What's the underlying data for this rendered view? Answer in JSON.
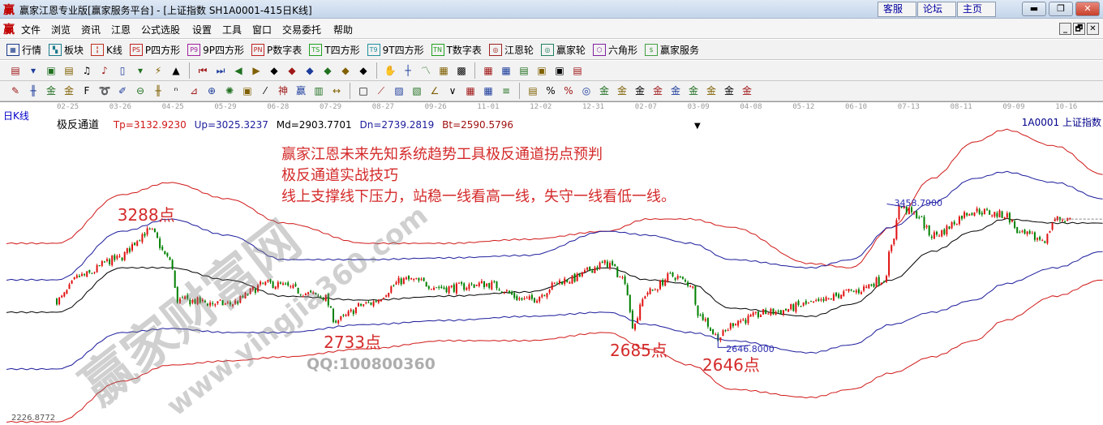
{
  "window": {
    "logo": "赢",
    "title": "赢家江恩专业版[赢家服务平台] - [上证指数  SH1A0001-415日K线]",
    "links": [
      "客服",
      "论坛",
      "主页"
    ],
    "controls": [
      "minimize-icon",
      "restore-icon",
      "close-icon"
    ]
  },
  "menu": {
    "logo": "赢",
    "items": [
      "文件",
      "浏览",
      "资讯",
      "江恩",
      "公式选股",
      "设置",
      "工具",
      "窗口",
      "交易委托",
      "帮助"
    ],
    "mdi_controls": [
      "_",
      "🗗",
      "✕"
    ]
  },
  "toolbar1": [
    {
      "label": "行情",
      "icon": "quote-table-icon",
      "glyph": "▦",
      "color": "#1a3c8c"
    },
    {
      "label": "板块",
      "icon": "sector-blocks-icon",
      "glyph": "▚",
      "color": "#1a7a8c"
    },
    {
      "label": "K线",
      "icon": "candlestick-icon",
      "glyph": "╏",
      "color": "#c03020"
    },
    {
      "label": "P四方形",
      "icon": "ps-icon",
      "glyph": "PS",
      "color": "#c02020"
    },
    {
      "label": "9P四方形",
      "icon": "p9-icon",
      "glyph": "P9",
      "color": "#a020a0"
    },
    {
      "label": "P数字表",
      "icon": "pn-icon",
      "glyph": "PN",
      "color": "#c02020"
    },
    {
      "label": "T四方形",
      "icon": "ts-icon",
      "glyph": "TS",
      "color": "#20a020"
    },
    {
      "label": "9T四方形",
      "icon": "t9-icon",
      "glyph": "T9",
      "color": "#2090a0"
    },
    {
      "label": "T数字表",
      "icon": "tn-icon",
      "glyph": "TN",
      "color": "#20a020"
    },
    {
      "label": "江恩轮",
      "icon": "gann-wheel-icon",
      "glyph": "◎",
      "color": "#a02020"
    },
    {
      "label": "赢家轮",
      "icon": "winner-wheel-icon",
      "glyph": "◎",
      "color": "#208060"
    },
    {
      "label": "六角形",
      "icon": "hexagon-icon",
      "glyph": "⬡",
      "color": "#8020a0"
    },
    {
      "label": "赢家服务",
      "icon": "dollar-icon",
      "glyph": "$",
      "color": "#40a040"
    }
  ],
  "toolbar2": [
    "day-period-icon",
    "period-dropdown-icon",
    "draw-icon",
    "notes-icon",
    "chart3-icon",
    "chart9-icon",
    "bar-type-icon",
    "bar-dropdown-icon",
    "gann-icon",
    "color-chart-icon",
    "first-icon",
    "last-icon",
    "left-icon",
    "right-icon",
    "zoom-left-icon",
    "zoom-right-icon",
    "expand-icon",
    "shrink-icon",
    "zoom-in-icon",
    "zoom-out-icon",
    "hand-icon",
    "crosshair-icon",
    "line-icon",
    "node-icon",
    "line-tool-icon",
    "calendar-icon",
    "calculator-icon",
    "report-icon",
    "save-icon",
    "network-icon",
    "print-icon"
  ],
  "toolbar3": [
    "pen-icon",
    "parallel-icon",
    "gold1-icon",
    "gold2-icon",
    "fib-icon",
    "spiral-icon",
    "brush-icon",
    "circle-icon",
    "grid-icon",
    "n2-icon",
    "angle-icon",
    "target-icon",
    "star-icon",
    "square-icon",
    "slash-icon",
    "god-icon",
    "win-icon",
    "ruler-icon",
    "width-icon",
    "box-icon",
    "fan-icon",
    "fan2-icon",
    "fan3-icon",
    "angle2-icon",
    "vline-icon",
    "grid2-icon",
    "grid3-icon",
    "multi-line-icon",
    "table-icon",
    "percent-icon",
    "percent2-icon",
    "ring-icon",
    "gold3-icon",
    "gold4-icon",
    "gold5-icon",
    "gold6-icon",
    "gold7-icon",
    "gold8-icon",
    "gold9-icon",
    "gold10-icon",
    "gold11-icon"
  ],
  "period_label": "日K线",
  "symbol": "1A0001  上证指数",
  "indicator": {
    "name": "极反通道",
    "tp": "Tp=3132.9230",
    "up": "Up=3025.3237",
    "md": "Md=2903.7701",
    "dn": "Dn=2739.2819",
    "bt": "Bt=2590.5796"
  },
  "notes": [
    "赢家江恩未来先知系统趋势工具极反通道拐点预判",
    "极反通道实战技巧",
    "线上支撑线下压力，站稳一线看高一线，失守一线看低一线。"
  ],
  "watermark": {
    "text": "赢家财富网",
    "url": "www.yingjia360.com",
    "qq": "QQ:100800360"
  },
  "chart_data": {
    "type": "candlestick",
    "x_ticks": [
      "02-25",
      "03-26",
      "04-25",
      "05-29",
      "06-28",
      "07-29",
      "08-27",
      "09-26",
      "11-01",
      "12-02",
      "12-31",
      "02-07",
      "03-09",
      "04-08",
      "05-12",
      "06-10",
      "07-13",
      "08-11",
      "09-09",
      "10-16"
    ],
    "ylim": [
      2199,
      3974
    ],
    "min_label": "2226.8772",
    "channel_bars": [
      0,
      26,
      45,
      68,
      90,
      123,
      155,
      187,
      219,
      235,
      252,
      268,
      300,
      316,
      332,
      348,
      365,
      377,
      397,
      416
    ],
    "channels": [
      {
        "name": "Tp",
        "color": "#d01818",
        "values": [
          3248,
          3529,
          3599,
          3505,
          3365,
          3248,
          3248,
          3271,
          3318,
          3388,
          3388,
          3341,
          3131,
          3107,
          3341,
          3622,
          3833,
          3904,
          3810,
          3646
        ]
      },
      {
        "name": "Up",
        "color": "#1c1c9c",
        "values": [
          3037,
          3318,
          3388,
          3295,
          3154,
          3154,
          3164,
          3178,
          3318,
          3295,
          3248,
          3154,
          3107,
          3154,
          3341,
          3482,
          3622,
          3660,
          3599,
          3505
        ]
      },
      {
        "name": "Md",
        "color": "#000000",
        "values": [
          2850,
          3107,
          3107,
          3037,
          2943,
          2920,
          2943,
          2967,
          3107,
          3037,
          3014,
          2873,
          2826,
          2896,
          3037,
          3201,
          3318,
          3388,
          3365,
          3365
        ]
      },
      {
        "name": "Dn",
        "color": "#1c1c9c",
        "values": [
          2522,
          2733,
          2756,
          2733,
          2733,
          2779,
          2803,
          2826,
          2850,
          2779,
          2733,
          2686,
          2616,
          2662,
          2779,
          2850,
          2920,
          3014,
          3107,
          3201
        ]
      },
      {
        "name": "Bt",
        "color": "#d01818",
        "values": [
          2217,
          2452,
          2545,
          2569,
          2592,
          2639,
          2686,
          2686,
          2733,
          2639,
          2545,
          2405,
          2358,
          2405,
          2499,
          2592,
          2686,
          2803,
          2943,
          3037
        ]
      }
    ],
    "price_path": {
      "bars": [
        0,
        10,
        23,
        37,
        45,
        48,
        68,
        84,
        106,
        111,
        123,
        139,
        155,
        171,
        187,
        203,
        219,
        226,
        229,
        235,
        245,
        252,
        256,
        263,
        271,
        284,
        300,
        316,
        329,
        332,
        335,
        342,
        348,
        365,
        377,
        384,
        393,
        397,
        403
      ],
      "values": [
        2920,
        3060,
        3154,
        3318,
        3154,
        2920,
        2897,
        3014,
        2943,
        2803,
        2897,
        3037,
        2990,
        3014,
        2920,
        3037,
        3131,
        3037,
        2779,
        2967,
        3060,
        3014,
        2826,
        2709,
        2803,
        2850,
        2897,
        2967,
        3037,
        3225,
        3459,
        3412,
        3295,
        3435,
        3412,
        3295,
        3271,
        3388,
        3388
      ]
    },
    "last_price": 3388,
    "annotations": [
      {
        "text": "3288点",
        "bar": 37,
        "price": 3318,
        "kind": "peak"
      },
      {
        "text": "2733点",
        "bar": 111,
        "price": 2733,
        "kind": "low"
      },
      {
        "text": "2685点",
        "bar": 229,
        "price": 2685,
        "kind": "low"
      },
      {
        "text": "2646点",
        "bar": 263,
        "price": 2646,
        "kind": "low"
      },
      {
        "text": "3458.7900",
        "bar": 335,
        "price": 3458.79,
        "kind": "value"
      },
      {
        "text": "2646.8000",
        "bar": 263,
        "price": 2646.8,
        "kind": "value"
      }
    ],
    "colors": {
      "up": "#e01010",
      "down": "#008000"
    }
  }
}
